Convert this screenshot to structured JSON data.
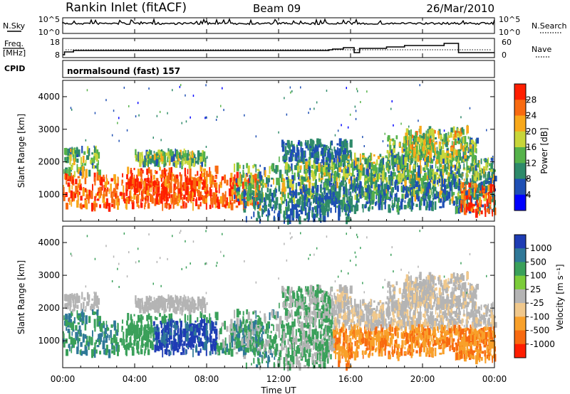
{
  "header": {
    "title": "Rankin Inlet (fitACF)",
    "beam": "Beam 09",
    "date": "26/Mar/2010"
  },
  "noise_panel": {
    "left_label": "N.Sky",
    "right_label": "N.Search",
    "left_ticks": [
      "10^5",
      "10^0"
    ],
    "right_ticks": [
      "10^5",
      "10^0"
    ]
  },
  "freq_panel": {
    "left_label_1": "Freq.",
    "left_label_2": "[MHz]",
    "right_label": "Nave",
    "left_ticks": [
      "18",
      "8"
    ],
    "right_ticks": [
      "60",
      "0"
    ]
  },
  "cpid_panel": {
    "label": "CPID",
    "value": "normalsound (fast) 157"
  },
  "chart_data": [
    {
      "type": "heatmap",
      "quantity": "Power",
      "ylabel": "Slant Range [km]",
      "cbar_label": "Power [dB]",
      "ylim": [
        180,
        4500
      ],
      "yticks": [
        "1000",
        "2000",
        "3000",
        "4000"
      ],
      "cbar_ticks": [
        "4",
        "8",
        "12",
        "16",
        "20",
        "24",
        "28"
      ],
      "cbar_colors": [
        "#0000ff",
        "#1f4fb4",
        "#2e8a6a",
        "#55b24a",
        "#c8d63a",
        "#f8a81a",
        "#f86a10",
        "#ff1e00"
      ]
    },
    {
      "type": "heatmap",
      "quantity": "Velocity",
      "ylabel": "Slant Range [km]",
      "xlabel": "Time UT",
      "cbar_label": "Velocity [m s⁻¹]",
      "ylim": [
        180,
        4500
      ],
      "yticks": [
        "1000",
        "2000",
        "3000",
        "4000"
      ],
      "xticks": [
        "00:00",
        "04:00",
        "08:00",
        "12:00",
        "16:00",
        "20:00",
        "00:00"
      ],
      "cbar_ticks": [
        "1000",
        "500",
        "100",
        "25",
        "-25",
        "-100",
        "-500",
        "-1000"
      ],
      "cbar_colors": [
        "#1e3cb4",
        "#2f7898",
        "#3aa05a",
        "#7ccc3a",
        "#b4b4b4",
        "#f0c88c",
        "#f8a02a",
        "#f86a10",
        "#ff1e00"
      ]
    }
  ]
}
